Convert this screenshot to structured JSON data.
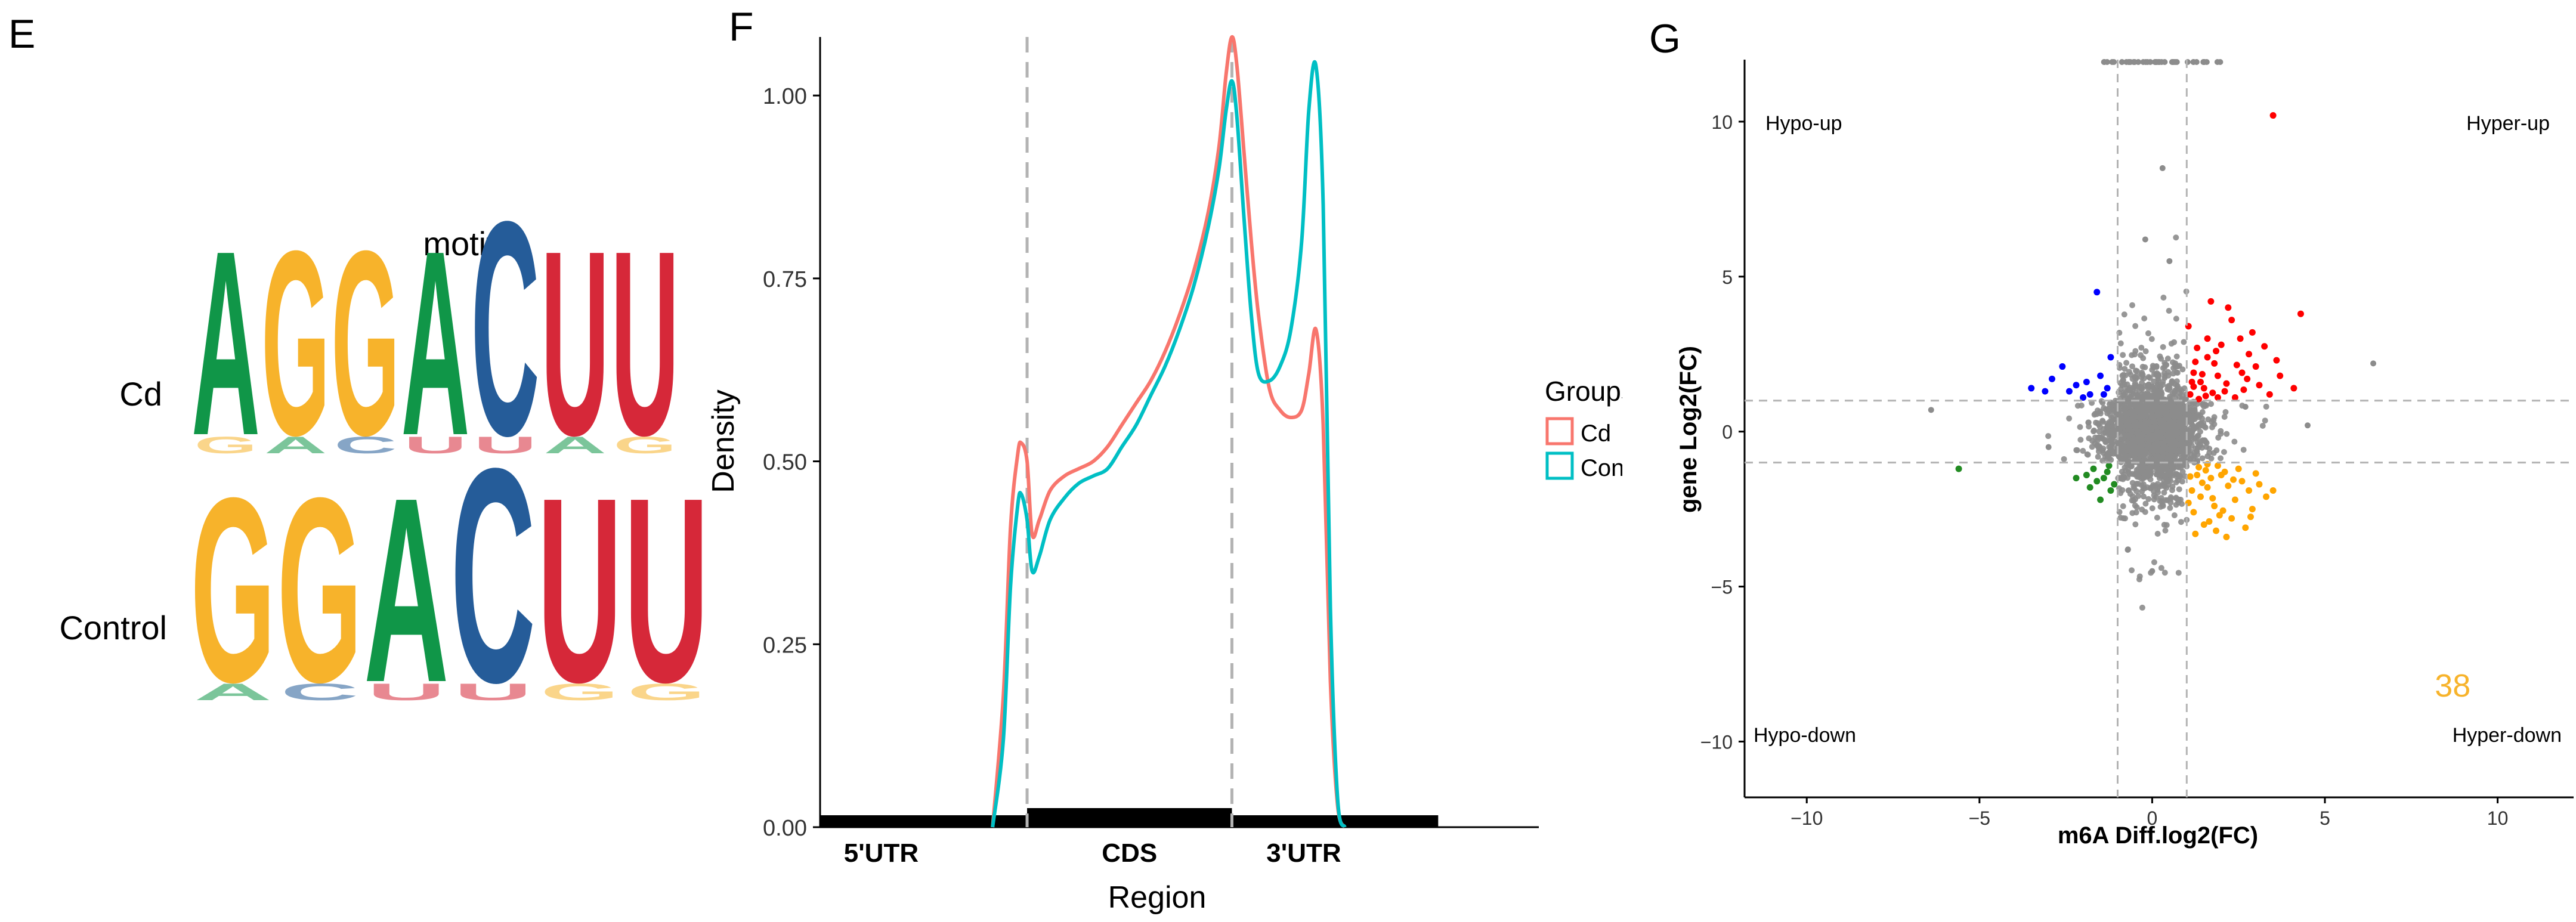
{
  "panels": {
    "E": "E",
    "F": "F",
    "G": "G"
  },
  "colors": {
    "A": "#109648",
    "G": "#F7B32B",
    "C": "#255C99",
    "U": "#D62839",
    "cd_line": "#F8766D",
    "control_line": "#00BFC4",
    "hyper_up": "#FF0000",
    "hypo_up": "#0000FF",
    "hypo_down": "#228B22",
    "hyper_down": "#FFA500",
    "background_points": "#8C8C8C"
  },
  "chart_data": [
    {
      "type": "sequence-logo",
      "title": "motif",
      "rows": [
        {
          "label": "Cd",
          "letters": [
            "A",
            "G",
            "G",
            "A",
            "C",
            "U",
            "U"
          ]
        },
        {
          "label": "Control",
          "letters": [
            "G",
            "G",
            "A",
            "C",
            "U",
            "U"
          ]
        }
      ]
    },
    {
      "type": "line",
      "xlabel": "Region",
      "ylabel": "Density",
      "ylim": [
        0,
        1.08
      ],
      "yticks": [
        "0.00",
        "0.25",
        "0.50",
        "0.75",
        "1.00"
      ],
      "regions": [
        "5'UTR",
        "CDS",
        "3'UTR"
      ],
      "boundaries": [
        0.288,
        0.573
      ],
      "legend": {
        "title": "Groups",
        "placement": "right",
        "entries": [
          "Cd",
          "Control"
        ]
      },
      "series": [
        {
          "name": "Cd",
          "x": [
            0.24,
            0.255,
            0.265,
            0.275,
            0.28,
            0.288,
            0.295,
            0.305,
            0.32,
            0.34,
            0.36,
            0.38,
            0.4,
            0.42,
            0.44,
            0.46,
            0.48,
            0.5,
            0.52,
            0.54,
            0.555,
            0.565,
            0.573,
            0.58,
            0.59,
            0.6,
            0.61,
            0.625,
            0.64,
            0.655,
            0.67,
            0.68,
            0.69,
            0.7,
            0.71,
            0.72,
            0.73
          ],
          "y": [
            0.0,
            0.18,
            0.41,
            0.51,
            0.525,
            0.5,
            0.4,
            0.42,
            0.46,
            0.48,
            0.49,
            0.5,
            0.52,
            0.55,
            0.58,
            0.61,
            0.65,
            0.7,
            0.76,
            0.84,
            0.93,
            1.03,
            1.08,
            1.04,
            0.92,
            0.8,
            0.7,
            0.6,
            0.57,
            0.56,
            0.57,
            0.62,
            0.68,
            0.55,
            0.2,
            0.03,
            0.0
          ]
        },
        {
          "name": "Control",
          "x": [
            0.24,
            0.255,
            0.265,
            0.275,
            0.28,
            0.288,
            0.295,
            0.305,
            0.32,
            0.34,
            0.36,
            0.38,
            0.4,
            0.42,
            0.44,
            0.46,
            0.48,
            0.5,
            0.52,
            0.54,
            0.555,
            0.565,
            0.573,
            0.58,
            0.59,
            0.6,
            0.61,
            0.625,
            0.64,
            0.655,
            0.67,
            0.68,
            0.69,
            0.7,
            0.71,
            0.72,
            0.73
          ],
          "y": [
            0.0,
            0.12,
            0.33,
            0.44,
            0.455,
            0.42,
            0.35,
            0.37,
            0.42,
            0.45,
            0.47,
            0.48,
            0.49,
            0.52,
            0.55,
            0.59,
            0.63,
            0.68,
            0.74,
            0.82,
            0.9,
            0.98,
            1.02,
            0.97,
            0.83,
            0.7,
            0.62,
            0.61,
            0.63,
            0.68,
            0.8,
            0.98,
            1.04,
            0.85,
            0.3,
            0.04,
            0.0
          ]
        }
      ]
    },
    {
      "type": "scatter",
      "xlabel": "m6A Diff.log2(FC)",
      "ylabel": "gene Log2(FC)",
      "xlim": [
        -11.8,
        12.2
      ],
      "ylim": [
        -11.8,
        12.0
      ],
      "xticks": [
        -10,
        -5,
        0,
        5,
        10
      ],
      "yticks": [
        -10,
        -5,
        0,
        5,
        10
      ],
      "thresholds": {
        "x": [
          -1,
          1
        ],
        "y": [
          -1,
          1
        ]
      },
      "quadrants": {
        "hypo_up": "Hypo-up",
        "hyper_up": "Hyper-up",
        "hypo_down": "Hypo-down",
        "hyper_down": "Hyper-down"
      },
      "annotation": {
        "text": "38",
        "x": 8.7,
        "y": -8.2
      },
      "groups": [
        {
          "name": "Hyper-up",
          "points": [
            [
              1.4,
              1.6
            ],
            [
              1.8,
              2.2
            ],
            [
              2.1,
              1.3
            ],
            [
              1.6,
              3.0
            ],
            [
              2.6,
              1.9
            ],
            [
              3.1,
              1.5
            ],
            [
              1.3,
              2.7
            ],
            [
              2.3,
              3.6
            ],
            [
              1.9,
              1.8
            ],
            [
              1.1,
              1.2
            ],
            [
              2.8,
              2.5
            ],
            [
              3.4,
              1.2
            ],
            [
              1.5,
              1.4
            ],
            [
              2.0,
              2.8
            ],
            [
              1.7,
              4.2
            ],
            [
              2.9,
              3.2
            ],
            [
              3.7,
              1.8
            ],
            [
              1.2,
              1.9
            ],
            [
              2.4,
              1.1
            ],
            [
              1.6,
              2.4
            ],
            [
              2.2,
              4.0
            ],
            [
              3.0,
              2.1
            ],
            [
              1.35,
              1.05
            ],
            [
              2.65,
              1.35
            ],
            [
              4.1,
              1.4
            ],
            [
              1.05,
              3.4
            ],
            [
              1.9,
              1.1
            ],
            [
              3.5,
              10.2
            ],
            [
              1.2,
              1.45
            ],
            [
              1.55,
              1.15
            ],
            [
              2.45,
              2.15
            ],
            [
              1.85,
              2.6
            ],
            [
              1.45,
              1.85
            ],
            [
              2.15,
              1.55
            ],
            [
              2.75,
              1.7
            ],
            [
              1.25,
              2.25
            ],
            [
              3.25,
              2.75
            ],
            [
              1.75,
              1.25
            ],
            [
              4.3,
              3.8
            ],
            [
              2.55,
              3.0
            ],
            [
              1.15,
              1.6
            ],
            [
              3.6,
              2.3
            ]
          ]
        },
        {
          "name": "Hypo-up",
          "points": [
            [
              -2.2,
              1.5
            ],
            [
              -1.5,
              1.8
            ],
            [
              -1.8,
              1.2
            ],
            [
              -3.1,
              1.3
            ],
            [
              -1.3,
              1.4
            ],
            [
              -2.6,
              2.1
            ],
            [
              -1.9,
              1.6
            ],
            [
              -3.5,
              1.4
            ],
            [
              -1.6,
              4.5
            ],
            [
              -1.2,
              2.4
            ],
            [
              -2.0,
              1.1
            ],
            [
              -2.9,
              1.7
            ],
            [
              -1.4,
              1.2
            ],
            [
              -2.4,
              1.3
            ]
          ]
        },
        {
          "name": "Hypo-down",
          "points": [
            [
              -1.3,
              -1.3
            ],
            [
              -1.6,
              -1.6
            ],
            [
              -1.2,
              -1.9
            ],
            [
              -1.9,
              -1.4
            ],
            [
              -5.6,
              -1.2
            ],
            [
              -1.4,
              -1.5
            ],
            [
              -1.7,
              -1.2
            ],
            [
              -1.1,
              -1.7
            ],
            [
              -1.5,
              -2.2
            ],
            [
              -2.2,
              -1.5
            ],
            [
              -1.25,
              -1.1
            ],
            [
              -1.8,
              -1.8
            ]
          ]
        },
        {
          "name": "Hyper-down",
          "points": [
            [
              1.3,
              -1.4
            ],
            [
              1.6,
              -1.8
            ],
            [
              2.1,
              -1.3
            ],
            [
              1.8,
              -2.4
            ],
            [
              2.6,
              -1.6
            ],
            [
              1.4,
              -2.1
            ],
            [
              2.3,
              -2.8
            ],
            [
              1.9,
              -1.1
            ],
            [
              2.8,
              -1.9
            ],
            [
              1.2,
              -2.6
            ],
            [
              1.7,
              -1.5
            ],
            [
              2.4,
              -2.2
            ],
            [
              3.1,
              -1.7
            ],
            [
              1.5,
              -3.0
            ],
            [
              2.0,
              -1.4
            ],
            [
              1.35,
              -1.15
            ],
            [
              2.9,
              -2.5
            ],
            [
              1.65,
              -2.9
            ],
            [
              2.2,
              -1.75
            ],
            [
              1.15,
              -1.9
            ],
            [
              2.5,
              -1.2
            ],
            [
              1.85,
              -3.2
            ],
            [
              3.3,
              -2.1
            ],
            [
              1.45,
              -1.65
            ],
            [
              2.7,
              -3.1
            ],
            [
              1.05,
              -2.3
            ],
            [
              2.05,
              -2.55
            ],
            [
              1.55,
              -1.25
            ],
            [
              3.0,
              -1.35
            ],
            [
              1.25,
              -3.3
            ],
            [
              2.35,
              -1.55
            ],
            [
              1.75,
              -2.15
            ],
            [
              2.85,
              -2.75
            ],
            [
              1.1,
              -1.45
            ],
            [
              2.15,
              -3.4
            ],
            [
              1.6,
              -1.05
            ],
            [
              3.5,
              -1.9
            ],
            [
              1.95,
              -2.7
            ]
          ]
        }
      ]
    }
  ]
}
